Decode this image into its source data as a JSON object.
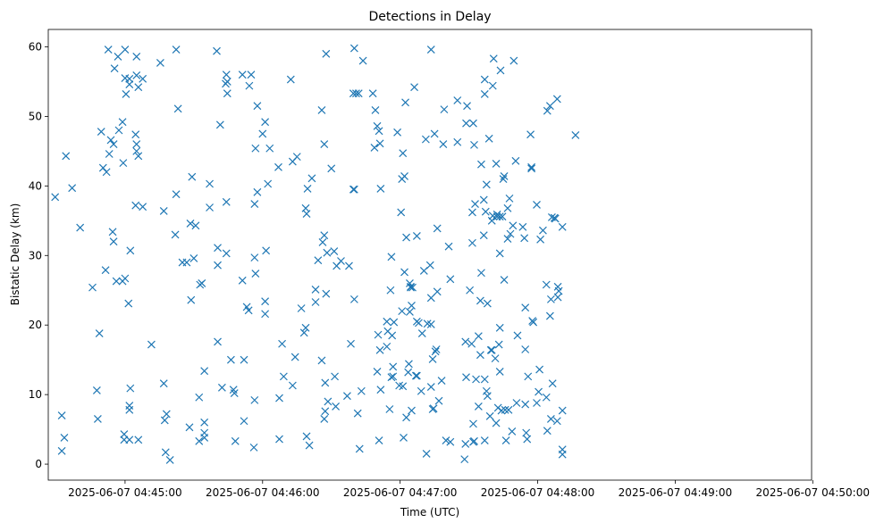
{
  "chart_data": {
    "type": "scatter",
    "title": "Detections in Delay",
    "xlabel": "Time (UTC)",
    "ylabel": "Bistatic Delay (km)",
    "marker": "x",
    "color": "#1f77b4",
    "grid": false,
    "legend": "none",
    "x_range_seconds_from_start": [
      -33.5,
      299.5
    ],
    "ylim": [
      -2.3,
      62.5
    ],
    "x_ticks": [
      {
        "label": "2025-06-07 04:45:00",
        "t": 0
      },
      {
        "label": "2025-06-07 04:46:00",
        "t": 60
      },
      {
        "label": "2025-06-07 04:47:00",
        "t": 120
      },
      {
        "label": "2025-06-07 04:48:00",
        "t": 180
      },
      {
        "label": "2025-06-07 04:49:00",
        "t": 240
      },
      {
        "label": "2025-06-07 04:50:00",
        "t": 300
      }
    ],
    "y_ticks": [
      0,
      10,
      20,
      30,
      40,
      50,
      60
    ],
    "points": [
      [
        -30.5,
        38.4
      ],
      [
        -27.6,
        7.0
      ],
      [
        -27.6,
        1.9
      ],
      [
        -26.5,
        3.8
      ],
      [
        -25.8,
        44.3
      ],
      [
        -23.1,
        39.7
      ],
      [
        -19.6,
        34.0
      ],
      [
        -14.2,
        25.4
      ],
      [
        -12.3,
        10.6
      ],
      [
        -11.9,
        6.5
      ],
      [
        -11.2,
        18.8
      ],
      [
        -10.4,
        47.8
      ],
      [
        -9.6,
        42.6
      ],
      [
        -8.5,
        27.9
      ],
      [
        -8.1,
        42.0
      ],
      [
        -7.3,
        59.6
      ],
      [
        -6.9,
        44.6
      ],
      [
        -6.2,
        46.6
      ],
      [
        -5.4,
        33.4
      ],
      [
        -5.0,
        46.0
      ],
      [
        -5.0,
        32.0
      ],
      [
        -4.6,
        56.9
      ],
      [
        -3.8,
        26.3
      ],
      [
        -3.1,
        58.6
      ],
      [
        -2.7,
        48.0
      ],
      [
        -1.1,
        49.2
      ],
      [
        -1.1,
        26.3
      ],
      [
        -0.8,
        43.3
      ],
      [
        -0.4,
        3.5
      ],
      [
        -0.4,
        4.3
      ],
      [
        0.0,
        55.5
      ],
      [
        0.0,
        59.6
      ],
      [
        0.0,
        26.7
      ],
      [
        0.4,
        53.2
      ],
      [
        1.5,
        23.1
      ],
      [
        1.9,
        54.6
      ],
      [
        1.9,
        55.4
      ],
      [
        1.9,
        8.4
      ],
      [
        1.9,
        7.8
      ],
      [
        1.9,
        3.5
      ],
      [
        2.3,
        30.7
      ],
      [
        2.3,
        10.9
      ],
      [
        4.6,
        47.4
      ],
      [
        4.6,
        37.2
      ],
      [
        5.0,
        46.0
      ],
      [
        5.0,
        45.0
      ],
      [
        5.0,
        55.9
      ],
      [
        5.0,
        58.6
      ],
      [
        5.8,
        3.5
      ],
      [
        5.8,
        54.2
      ],
      [
        5.8,
        44.3
      ],
      [
        7.7,
        55.4
      ],
      [
        7.7,
        37.0
      ],
      [
        11.5,
        17.2
      ],
      [
        15.4,
        57.7
      ],
      [
        16.9,
        36.4
      ],
      [
        16.9,
        11.6
      ],
      [
        17.3,
        6.3
      ],
      [
        17.7,
        1.7
      ],
      [
        18.1,
        7.2
      ],
      [
        19.6,
        0.6
      ],
      [
        21.9,
        33.0
      ],
      [
        22.3,
        59.6
      ],
      [
        22.3,
        38.8
      ],
      [
        23.1,
        51.1
      ],
      [
        25.0,
        29.0
      ],
      [
        26.9,
        29.0
      ],
      [
        28.1,
        5.3
      ],
      [
        28.5,
        34.6
      ],
      [
        28.8,
        23.6
      ],
      [
        29.2,
        41.3
      ],
      [
        30.0,
        29.6
      ],
      [
        30.8,
        34.3
      ],
      [
        32.3,
        9.6
      ],
      [
        32.3,
        3.3
      ],
      [
        32.7,
        25.8
      ],
      [
        33.5,
        26.0
      ],
      [
        34.6,
        4.5
      ],
      [
        34.6,
        3.8
      ],
      [
        34.6,
        13.4
      ],
      [
        34.6,
        6.0
      ],
      [
        36.9,
        40.3
      ],
      [
        36.9,
        36.9
      ],
      [
        40.0,
        59.4
      ],
      [
        40.4,
        28.6
      ],
      [
        40.4,
        31.1
      ],
      [
        40.4,
        17.6
      ],
      [
        41.5,
        48.8
      ],
      [
        42.3,
        11.0
      ],
      [
        43.9,
        54.7
      ],
      [
        44.2,
        56.0
      ],
      [
        44.2,
        37.7
      ],
      [
        44.2,
        30.3
      ],
      [
        44.6,
        55.0
      ],
      [
        44.6,
        53.3
      ],
      [
        46.2,
        15.0
      ],
      [
        47.3,
        10.7
      ],
      [
        47.7,
        10.2
      ],
      [
        48.1,
        3.3
      ],
      [
        51.2,
        56.0
      ],
      [
        51.2,
        26.4
      ],
      [
        51.9,
        15.0
      ],
      [
        51.9,
        6.2
      ],
      [
        53.1,
        22.6
      ],
      [
        53.9,
        22.1
      ],
      [
        54.2,
        54.4
      ],
      [
        55.0,
        56.0
      ],
      [
        56.2,
        2.4
      ],
      [
        56.5,
        9.2
      ],
      [
        56.5,
        37.4
      ],
      [
        56.5,
        29.7
      ],
      [
        56.9,
        45.4
      ],
      [
        56.9,
        27.4
      ],
      [
        57.7,
        39.1
      ],
      [
        57.7,
        51.5
      ],
      [
        60.0,
        47.5
      ],
      [
        61.1,
        49.2
      ],
      [
        61.1,
        23.4
      ],
      [
        61.1,
        21.6
      ],
      [
        61.5,
        30.7
      ],
      [
        62.3,
        40.3
      ],
      [
        63.1,
        45.4
      ],
      [
        66.9,
        42.7
      ],
      [
        67.3,
        9.5
      ],
      [
        67.3,
        3.6
      ],
      [
        68.5,
        17.3
      ],
      [
        69.2,
        12.6
      ],
      [
        72.3,
        55.3
      ],
      [
        73.1,
        11.3
      ],
      [
        73.1,
        43.5
      ],
      [
        74.2,
        15.4
      ],
      [
        75.0,
        44.2
      ],
      [
        76.9,
        22.4
      ],
      [
        78.1,
        18.9
      ],
      [
        78.8,
        19.6
      ],
      [
        78.8,
        36.8
      ],
      [
        79.2,
        36.0
      ],
      [
        79.2,
        4.0
      ],
      [
        79.6,
        39.6
      ],
      [
        80.4,
        2.7
      ],
      [
        81.5,
        41.1
      ],
      [
        83.1,
        23.3
      ],
      [
        83.1,
        25.1
      ],
      [
        84.2,
        29.3
      ],
      [
        85.8,
        50.9
      ],
      [
        85.8,
        14.9
      ],
      [
        86.2,
        31.9
      ],
      [
        86.9,
        6.5
      ],
      [
        86.9,
        46.0
      ],
      [
        86.9,
        32.9
      ],
      [
        87.3,
        7.6
      ],
      [
        87.3,
        11.7
      ],
      [
        87.7,
        59.0
      ],
      [
        87.7,
        24.5
      ],
      [
        88.1,
        30.4
      ],
      [
        88.5,
        9.0
      ],
      [
        90.0,
        42.5
      ],
      [
        91.2,
        30.6
      ],
      [
        91.5,
        12.6
      ],
      [
        91.9,
        8.3
      ],
      [
        92.3,
        28.5
      ],
      [
        94.2,
        29.2
      ],
      [
        96.9,
        9.8
      ],
      [
        97.7,
        28.5
      ],
      [
        98.5,
        17.3
      ],
      [
        99.6,
        39.5
      ],
      [
        99.6,
        53.3
      ],
      [
        100.0,
        59.8
      ],
      [
        100.0,
        39.5
      ],
      [
        100.0,
        23.7
      ],
      [
        100.8,
        53.3
      ],
      [
        101.5,
        7.3
      ],
      [
        101.9,
        53.3
      ],
      [
        102.3,
        2.2
      ],
      [
        103.1,
        10.5
      ],
      [
        103.8,
        58.0
      ],
      [
        108.1,
        53.3
      ],
      [
        108.8,
        45.5
      ],
      [
        109.2,
        50.9
      ],
      [
        110.0,
        48.6
      ],
      [
        110.0,
        13.3
      ],
      [
        110.4,
        18.6
      ],
      [
        110.8,
        47.9
      ],
      [
        110.8,
        3.4
      ],
      [
        111.2,
        46.1
      ],
      [
        111.2,
        16.4
      ],
      [
        111.5,
        10.7
      ],
      [
        111.5,
        39.6
      ],
      [
        114.2,
        16.9
      ],
      [
        114.2,
        20.5
      ],
      [
        114.6,
        19.1
      ],
      [
        115.4,
        7.9
      ],
      [
        115.8,
        25.0
      ],
      [
        116.2,
        29.8
      ],
      [
        116.2,
        12.5
      ],
      [
        116.5,
        18.5
      ],
      [
        116.9,
        14.0
      ],
      [
        116.9,
        12.6
      ],
      [
        117.3,
        20.4
      ],
      [
        118.8,
        47.7
      ],
      [
        119.6,
        11.3
      ],
      [
        120.4,
        36.2
      ],
      [
        120.8,
        41.0
      ],
      [
        120.8,
        22.0
      ],
      [
        121.2,
        11.2
      ],
      [
        121.2,
        44.7
      ],
      [
        121.5,
        3.8
      ],
      [
        121.9,
        27.6
      ],
      [
        121.9,
        41.4
      ],
      [
        122.3,
        52.0
      ],
      [
        122.7,
        6.7
      ],
      [
        122.7,
        32.6
      ],
      [
        123.5,
        13.2
      ],
      [
        123.8,
        14.4
      ],
      [
        124.2,
        26.0
      ],
      [
        124.2,
        21.9
      ],
      [
        124.6,
        25.5
      ],
      [
        124.6,
        25.4
      ],
      [
        125.0,
        7.7
      ],
      [
        125.0,
        22.8
      ],
      [
        125.4,
        25.4
      ],
      [
        126.2,
        54.2
      ],
      [
        126.9,
        12.7
      ],
      [
        127.3,
        20.5
      ],
      [
        127.3,
        32.8
      ],
      [
        127.3,
        12.7
      ],
      [
        128.1,
        20.3
      ],
      [
        129.2,
        10.5
      ],
      [
        129.6,
        18.8
      ],
      [
        130.4,
        27.8
      ],
      [
        131.2,
        46.7
      ],
      [
        131.5,
        1.5
      ],
      [
        131.9,
        20.2
      ],
      [
        133.1,
        28.6
      ],
      [
        133.5,
        23.9
      ],
      [
        133.5,
        59.6
      ],
      [
        133.5,
        20.1
      ],
      [
        133.5,
        11.1
      ],
      [
        134.2,
        7.9
      ],
      [
        134.2,
        15.1
      ],
      [
        134.6,
        8.0
      ],
      [
        135.0,
        47.5
      ],
      [
        135.4,
        16.2
      ],
      [
        135.8,
        16.5
      ],
      [
        136.2,
        33.9
      ],
      [
        136.2,
        24.8
      ],
      [
        136.9,
        9.1
      ],
      [
        138.1,
        12.0
      ],
      [
        138.8,
        46.0
      ],
      [
        139.2,
        51.0
      ],
      [
        140.0,
        3.4
      ],
      [
        141.2,
        31.3
      ],
      [
        141.9,
        3.2
      ],
      [
        141.9,
        26.6
      ],
      [
        145.0,
        52.3
      ],
      [
        145.0,
        46.3
      ],
      [
        148.1,
        0.7
      ],
      [
        148.5,
        2.9
      ],
      [
        148.5,
        17.6
      ],
      [
        148.8,
        12.5
      ],
      [
        148.8,
        49.0
      ],
      [
        149.2,
        51.5
      ],
      [
        150.4,
        25.0
      ],
      [
        151.2,
        17.3
      ],
      [
        151.5,
        31.8
      ],
      [
        151.5,
        36.2
      ],
      [
        151.9,
        49.0
      ],
      [
        151.9,
        5.8
      ],
      [
        151.9,
        3.2
      ],
      [
        152.3,
        45.9
      ],
      [
        152.3,
        3.3
      ],
      [
        152.7,
        37.4
      ],
      [
        153.1,
        12.2
      ],
      [
        154.2,
        18.4
      ],
      [
        154.2,
        8.3
      ],
      [
        155.0,
        15.7
      ],
      [
        155.0,
        23.5
      ],
      [
        155.4,
        27.5
      ],
      [
        155.4,
        43.1
      ],
      [
        156.5,
        38.0
      ],
      [
        156.5,
        32.9
      ],
      [
        156.9,
        12.2
      ],
      [
        156.9,
        3.4
      ],
      [
        156.9,
        53.2
      ],
      [
        156.9,
        55.3
      ],
      [
        157.3,
        36.3
      ],
      [
        157.7,
        10.5
      ],
      [
        157.7,
        40.2
      ],
      [
        158.1,
        9.8
      ],
      [
        158.1,
        23.1
      ],
      [
        158.8,
        46.8
      ],
      [
        159.2,
        6.9
      ],
      [
        159.6,
        16.4
      ],
      [
        160.0,
        16.4
      ],
      [
        160.0,
        35.0
      ],
      [
        160.4,
        35.7
      ],
      [
        160.4,
        54.4
      ],
      [
        160.8,
        58.3
      ],
      [
        161.5,
        15.2
      ],
      [
        161.9,
        5.9
      ],
      [
        161.9,
        43.2
      ],
      [
        162.3,
        35.9
      ],
      [
        162.3,
        35.6
      ],
      [
        162.7,
        8.1
      ],
      [
        163.1,
        17.2
      ],
      [
        163.5,
        13.3
      ],
      [
        163.5,
        35.6
      ],
      [
        163.5,
        30.3
      ],
      [
        163.5,
        19.6
      ],
      [
        163.8,
        56.6
      ],
      [
        164.2,
        7.7
      ],
      [
        164.6,
        35.6
      ],
      [
        165.0,
        41.0
      ],
      [
        165.4,
        41.4
      ],
      [
        165.4,
        26.5
      ],
      [
        165.8,
        7.8
      ],
      [
        166.2,
        3.4
      ],
      [
        166.9,
        32.4
      ],
      [
        166.9,
        36.8
      ],
      [
        167.3,
        7.8
      ],
      [
        167.7,
        38.2
      ],
      [
        168.1,
        33.1
      ],
      [
        168.8,
        4.7
      ],
      [
        169.2,
        34.3
      ],
      [
        169.6,
        58.0
      ],
      [
        170.4,
        43.6
      ],
      [
        170.8,
        8.8
      ],
      [
        171.2,
        18.5
      ],
      [
        173.5,
        34.1
      ],
      [
        174.2,
        32.5
      ],
      [
        174.6,
        22.5
      ],
      [
        174.6,
        16.5
      ],
      [
        174.6,
        8.6
      ],
      [
        175.0,
        4.5
      ],
      [
        175.4,
        3.6
      ],
      [
        175.8,
        12.6
      ],
      [
        176.9,
        47.4
      ],
      [
        177.3,
        42.7
      ],
      [
        177.3,
        42.5
      ],
      [
        177.7,
        20.6
      ],
      [
        178.1,
        20.4
      ],
      [
        179.6,
        8.8
      ],
      [
        179.6,
        37.3
      ],
      [
        180.4,
        10.4
      ],
      [
        180.8,
        13.6
      ],
      [
        181.2,
        32.3
      ],
      [
        182.3,
        33.6
      ],
      [
        183.8,
        9.6
      ],
      [
        183.8,
        25.8
      ],
      [
        184.2,
        4.8
      ],
      [
        184.2,
        50.8
      ],
      [
        185.4,
        51.5
      ],
      [
        185.4,
        21.3
      ],
      [
        185.8,
        6.5
      ],
      [
        185.8,
        23.7
      ],
      [
        186.2,
        35.5
      ],
      [
        186.5,
        11.6
      ],
      [
        187.3,
        35.4
      ],
      [
        187.7,
        35.3
      ],
      [
        188.5,
        52.5
      ],
      [
        188.5,
        6.2
      ],
      [
        188.8,
        25.5
      ],
      [
        188.8,
        24.0
      ],
      [
        189.2,
        24.9
      ],
      [
        190.8,
        7.7
      ],
      [
        190.8,
        34.1
      ],
      [
        190.8,
        2.1
      ],
      [
        190.8,
        1.4
      ],
      [
        196.5,
        47.3
      ]
    ]
  }
}
